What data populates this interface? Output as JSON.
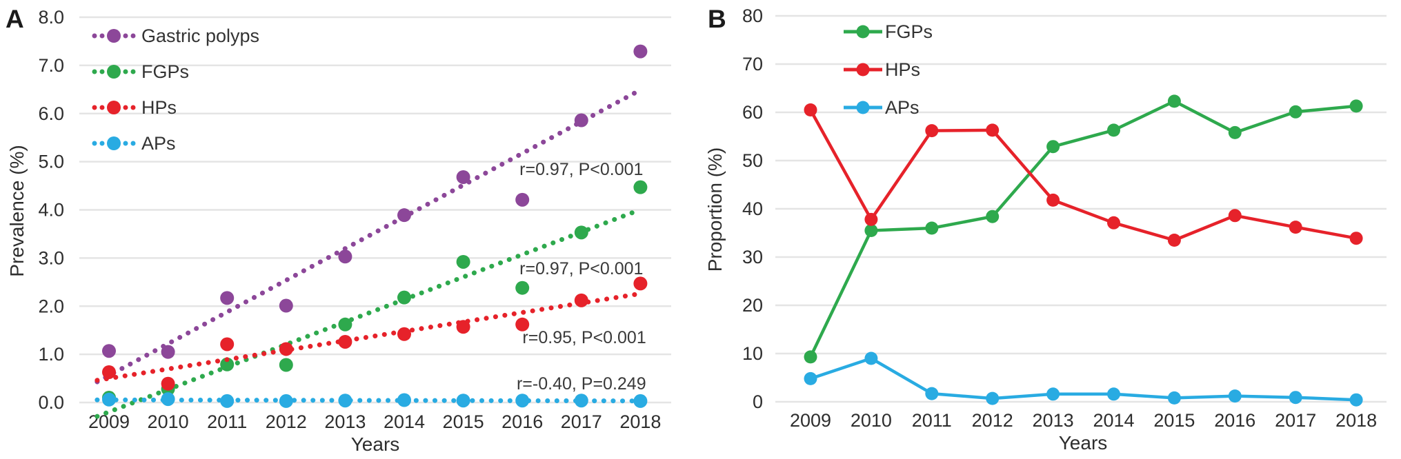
{
  "chart_data": [
    {
      "panel_label": "A",
      "type": "scatter",
      "title": "Prevalence of gastric polyps by year with linear trend lines",
      "xlabel": "Years",
      "ylabel": "Prevalence (%)",
      "categories": [
        "2009",
        "2010",
        "2011",
        "2012",
        "2013",
        "2014",
        "2015",
        "2016",
        "2017",
        "2018"
      ],
      "ylim": [
        0,
        8
      ],
      "ytick_step": 1,
      "ytick_labels": [
        "0.0",
        "1.0",
        "2.0",
        "3.0",
        "4.0",
        "5.0",
        "6.0",
        "7.0",
        "8.0"
      ],
      "grid": "horizontal",
      "legend_position": "top-left-inside",
      "series": [
        {
          "name": "Gastric polyps",
          "color": "#8C4799",
          "marker": "circle",
          "trendline": "dotted",
          "values": [
            1.07,
            1.05,
            2.17,
            2.01,
            3.03,
            3.89,
            4.68,
            4.21,
            5.86,
            7.29
          ],
          "annotation": {
            "text": "r=0.97, P<0.001",
            "x_index": 8.0,
            "y_value": 4.85
          }
        },
        {
          "name": "FGPs",
          "color": "#2EA94D",
          "marker": "circle",
          "trendline": "dotted",
          "values": [
            0.1,
            0.28,
            0.79,
            0.78,
            1.62,
            2.18,
            2.92,
            2.38,
            3.53,
            4.47
          ],
          "annotation": {
            "text": "r=0.97, P<0.001",
            "x_index": 8.0,
            "y_value": 2.79
          }
        },
        {
          "name": "HPs",
          "color": "#E6222A",
          "marker": "circle",
          "trendline": "dotted",
          "values": [
            0.63,
            0.39,
            1.21,
            1.11,
            1.26,
            1.42,
            1.57,
            1.62,
            2.12,
            2.47
          ],
          "annotation": {
            "text": "r=0.95, P<0.001",
            "x_index": 8.05,
            "y_value": 1.36
          }
        },
        {
          "name": "APs",
          "color": "#29ABE2",
          "marker": "circle",
          "trendline": "dotted",
          "values": [
            0.06,
            0.07,
            0.03,
            0.03,
            0.04,
            0.05,
            0.04,
            0.04,
            0.04,
            0.03
          ],
          "annotation": {
            "text": "r=-0.40, P=0.249",
            "x_index": 8.0,
            "y_value": 0.4
          }
        }
      ]
    },
    {
      "panel_label": "B",
      "type": "line",
      "title": "Proportion of polyp subtypes by year",
      "xlabel": "Years",
      "ylabel": "Proportion (%)",
      "categories": [
        "2009",
        "2010",
        "2011",
        "2012",
        "2013",
        "2014",
        "2015",
        "2016",
        "2017",
        "2018"
      ],
      "ylim": [
        0,
        80
      ],
      "ytick_step": 10,
      "ytick_labels": [
        "0",
        "10",
        "20",
        "30",
        "40",
        "50",
        "60",
        "70",
        "80"
      ],
      "grid": "horizontal",
      "legend_position": "top-left-inside",
      "series": [
        {
          "name": "FGPs",
          "color": "#2EA94D",
          "marker": "circle",
          "values": [
            9.3,
            35.5,
            36.0,
            38.4,
            52.9,
            56.3,
            62.3,
            55.8,
            60.1,
            61.3
          ]
        },
        {
          "name": "HPs",
          "color": "#E6222A",
          "marker": "circle",
          "values": [
            60.5,
            37.8,
            56.2,
            56.3,
            41.8,
            37.1,
            33.5,
            38.6,
            36.2,
            33.9
          ]
        },
        {
          "name": "APs",
          "color": "#29ABE2",
          "marker": "circle",
          "values": [
            4.8,
            9.0,
            1.7,
            0.7,
            1.6,
            1.6,
            0.8,
            1.2,
            0.9,
            0.4
          ]
        }
      ]
    }
  ]
}
